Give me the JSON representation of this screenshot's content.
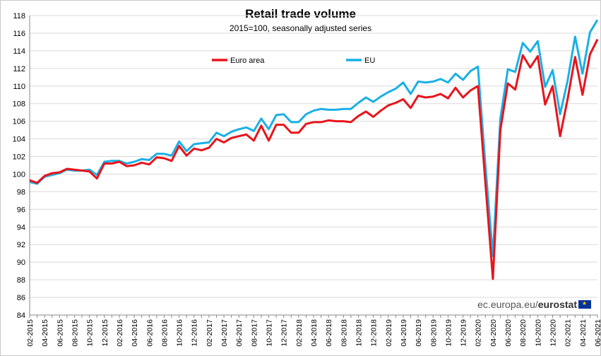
{
  "chart_data": {
    "type": "line",
    "title": "Retail trade volume",
    "subtitle": "2015=100,  seasonally adjusted series",
    "xlabel": "",
    "ylabel": "",
    "ylim": [
      84,
      118
    ],
    "yticks": [
      84,
      86,
      88,
      90,
      92,
      94,
      96,
      98,
      100,
      102,
      104,
      106,
      108,
      110,
      112,
      114,
      116,
      118
    ],
    "grid": true,
    "legend": "top-left inside plot",
    "x": [
      "02-2015",
      "03-2015",
      "04-2015",
      "05-2015",
      "06-2015",
      "07-2015",
      "08-2015",
      "09-2015",
      "10-2015",
      "11-2015",
      "12-2015",
      "01-2016",
      "02-2016",
      "03-2016",
      "04-2016",
      "05-2016",
      "06-2016",
      "07-2016",
      "08-2016",
      "09-2016",
      "10-2016",
      "11-2016",
      "12-2016",
      "01-2017",
      "02-2017",
      "03-2017",
      "04-2017",
      "05-2017",
      "06-2017",
      "07-2017",
      "08-2017",
      "09-2017",
      "10-2017",
      "11-2017",
      "12-2017",
      "01-2018",
      "02-2018",
      "03-2018",
      "04-2018",
      "05-2018",
      "06-2018",
      "07-2018",
      "08-2018",
      "09-2018",
      "10-2018",
      "11-2018",
      "12-2018",
      "01-2019",
      "02-2019",
      "03-2019",
      "04-2019",
      "05-2019",
      "06-2019",
      "07-2019",
      "08-2019",
      "09-2019",
      "10-2019",
      "11-2019",
      "12-2019",
      "01-2020",
      "02-2020",
      "03-2020",
      "04-2020",
      "05-2020",
      "06-2020",
      "07-2020",
      "08-2020",
      "09-2020",
      "10-2020",
      "11-2020",
      "12-2020",
      "01-2021",
      "02-2021",
      "03-2021",
      "04-2021",
      "05-2021",
      "06-2021"
    ],
    "tick_labels": [
      "02-2015",
      "04-2015",
      "06-2015",
      "08-2015",
      "10-2015",
      "12-2015",
      "02-2016",
      "04-2016",
      "06-2016",
      "08-2016",
      "10-2016",
      "12-2016",
      "02-2017",
      "04-2017",
      "06-2017",
      "08-2017",
      "10-2017",
      "12-2017",
      "02-2018",
      "04-2018",
      "06-2018",
      "08-2018",
      "10-2018",
      "12-2018",
      "02-2019",
      "04-2019",
      "06-2019",
      "08-2019",
      "10-2019",
      "12-2019",
      "02-2020",
      "04-2020",
      "06-2020",
      "08-2020",
      "10-2020",
      "12-2020",
      "02-2021",
      "04-2021",
      "06-2021"
    ],
    "series": [
      {
        "name": "Euro area",
        "color": "#e8141b",
        "values": [
          99.3,
          99.0,
          99.8,
          100.1,
          100.2,
          100.6,
          100.5,
          100.4,
          100.3,
          99.5,
          101.2,
          101.2,
          101.4,
          100.9,
          101.0,
          101.3,
          101.1,
          101.9,
          101.8,
          101.5,
          103.2,
          102.1,
          102.9,
          102.7,
          103.0,
          104.0,
          103.6,
          104.1,
          104.3,
          104.5,
          103.8,
          105.5,
          103.8,
          105.6,
          105.6,
          104.7,
          104.7,
          105.7,
          105.9,
          105.9,
          106.1,
          106.0,
          106.0,
          105.9,
          106.6,
          107.1,
          106.5,
          107.2,
          107.8,
          108.1,
          108.5,
          107.5,
          108.9,
          108.7,
          108.8,
          109.1,
          108.6,
          109.8,
          108.7,
          109.5,
          110.0,
          99.0,
          88.1,
          105.0,
          110.3,
          109.6,
          113.5,
          112.1,
          113.4,
          107.9,
          110.0,
          104.3,
          108.5,
          113.3,
          109.0,
          113.6,
          115.3
        ]
      },
      {
        "name": "EU",
        "color": "#1ab0e6",
        "values": [
          99.1,
          98.9,
          99.7,
          99.9,
          100.1,
          100.5,
          100.4,
          100.4,
          100.5,
          99.9,
          101.4,
          101.5,
          101.5,
          101.2,
          101.4,
          101.7,
          101.6,
          102.3,
          102.3,
          102.1,
          103.7,
          102.6,
          103.4,
          103.5,
          103.6,
          104.7,
          104.3,
          104.8,
          105.1,
          105.3,
          104.9,
          106.3,
          105.1,
          106.7,
          106.8,
          105.9,
          105.9,
          106.8,
          107.2,
          107.4,
          107.3,
          107.3,
          107.4,
          107.4,
          108.1,
          108.7,
          108.2,
          108.8,
          109.3,
          109.7,
          110.4,
          109.1,
          110.5,
          110.4,
          110.5,
          110.8,
          110.4,
          111.4,
          110.7,
          111.7,
          112.2,
          101.0,
          90.7,
          106.3,
          111.9,
          111.6,
          114.9,
          113.9,
          115.1,
          109.9,
          111.8,
          106.8,
          110.6,
          115.6,
          111.4,
          116.1,
          117.5
        ]
      }
    ]
  },
  "watermark": {
    "site": "ec.europa.eu/",
    "brand": "eurostat"
  }
}
